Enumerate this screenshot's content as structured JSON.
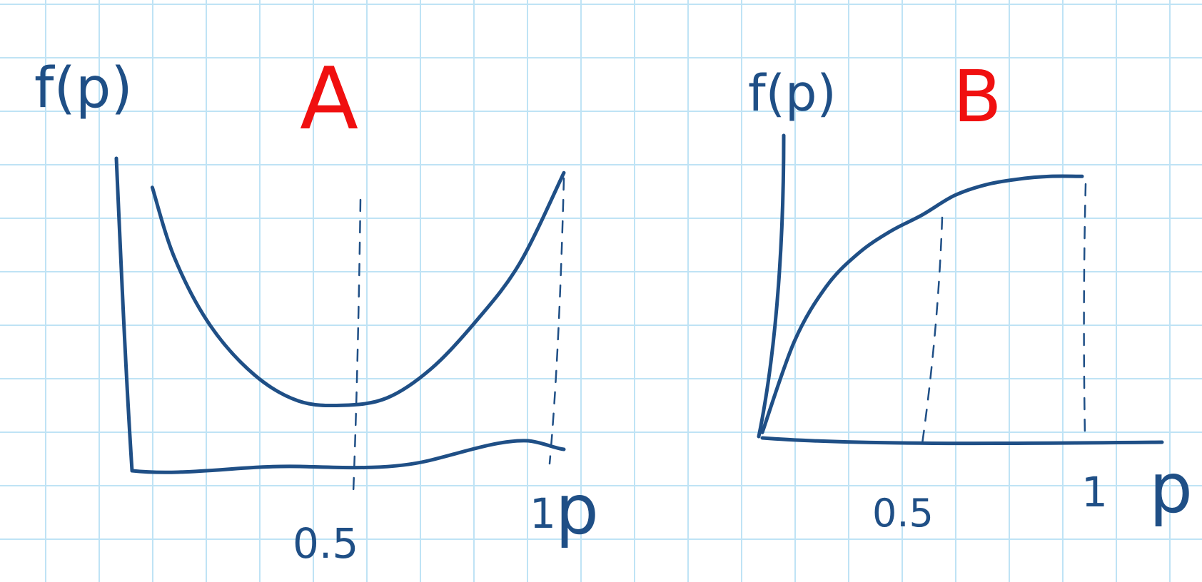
{
  "colors": {
    "ink": "#1f4f86",
    "title": "#f01010",
    "grid": "#bfe3f5"
  },
  "chart_data": [
    {
      "type": "line",
      "title": "A",
      "ylabel": "f(p)",
      "xlabel": "p",
      "x_ticks": [
        "0.5",
        "1"
      ],
      "xlim": [
        0,
        1
      ],
      "series": [
        {
          "values": [
            {
              "x": 0.07,
              "y": 0.92
            },
            {
              "x": 0.12,
              "y": 0.68
            },
            {
              "x": 0.2,
              "y": 0.45
            },
            {
              "x": 0.3,
              "y": 0.28
            },
            {
              "x": 0.4,
              "y": 0.19
            },
            {
              "x": 0.5,
              "y": 0.175
            },
            {
              "x": 0.6,
              "y": 0.2
            },
            {
              "x": 0.7,
              "y": 0.3
            },
            {
              "x": 0.8,
              "y": 0.46
            },
            {
              "x": 0.9,
              "y": 0.66
            },
            {
              "x": 1.0,
              "y": 0.97
            }
          ]
        }
      ],
      "reference_lines": [
        0.5,
        1.0
      ]
    },
    {
      "type": "line",
      "title": "B",
      "ylabel": "f(p)",
      "xlabel": "p",
      "x_ticks": [
        "0.5",
        "1"
      ],
      "xlim": [
        0,
        1
      ],
      "series": [
        {
          "values": [
            {
              "x": 0.0,
              "y": 0.02
            },
            {
              "x": 0.1,
              "y": 0.35
            },
            {
              "x": 0.2,
              "y": 0.55
            },
            {
              "x": 0.3,
              "y": 0.67
            },
            {
              "x": 0.4,
              "y": 0.75
            },
            {
              "x": 0.5,
              "y": 0.81
            },
            {
              "x": 0.6,
              "y": 0.88
            },
            {
              "x": 0.7,
              "y": 0.92
            },
            {
              "x": 0.8,
              "y": 0.94
            },
            {
              "x": 0.9,
              "y": 0.95
            },
            {
              "x": 1.0,
              "y": 0.95
            }
          ]
        }
      ],
      "reference_lines": [
        0.5,
        1.0
      ]
    }
  ]
}
